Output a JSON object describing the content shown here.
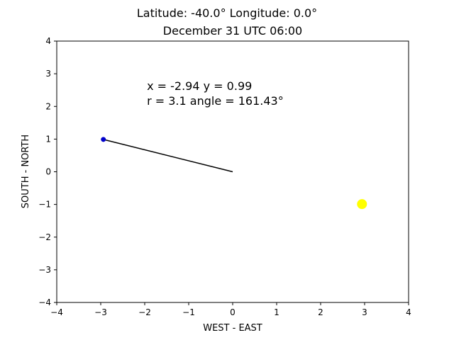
{
  "chart_data": {
    "type": "scatter",
    "title_line1": "Latitude: -40.0° Longitude: 0.0°",
    "title_line2": "December 31 UTC 06:00",
    "xlabel": "WEST - EAST",
    "ylabel": "SOUTH - NORTH",
    "xlim": [
      -4,
      4
    ],
    "ylim": [
      -4,
      4
    ],
    "xticks": [
      -4,
      -3,
      -2,
      -1,
      0,
      1,
      2,
      3,
      4
    ],
    "yticks": [
      -4,
      -3,
      -2,
      -1,
      0,
      1,
      2,
      3,
      4
    ],
    "xtick_labels": [
      "−4",
      "−3",
      "−2",
      "−1",
      "0",
      "1",
      "2",
      "3",
      "4"
    ],
    "ytick_labels": [
      "−4",
      "−3",
      "−2",
      "−1",
      "0",
      "1",
      "2",
      "3",
      "4"
    ],
    "grid": false,
    "vector_line": {
      "from": [
        0,
        0
      ],
      "to": [
        -2.94,
        0.99
      ],
      "color": "#000000"
    },
    "points": [
      {
        "name": "vector-tip",
        "x": -2.94,
        "y": 0.99,
        "color": "#0000cc"
      },
      {
        "name": "sun",
        "x": 2.94,
        "y": -0.99,
        "color": "#ffff00"
      }
    ],
    "annotation": {
      "line1": "x = -2.94 y = 0.99",
      "line2": "r = 3.1 angle = 161.43°",
      "x": -1.95,
      "y_line1": 2.5,
      "y_line2": 2.05
    }
  }
}
